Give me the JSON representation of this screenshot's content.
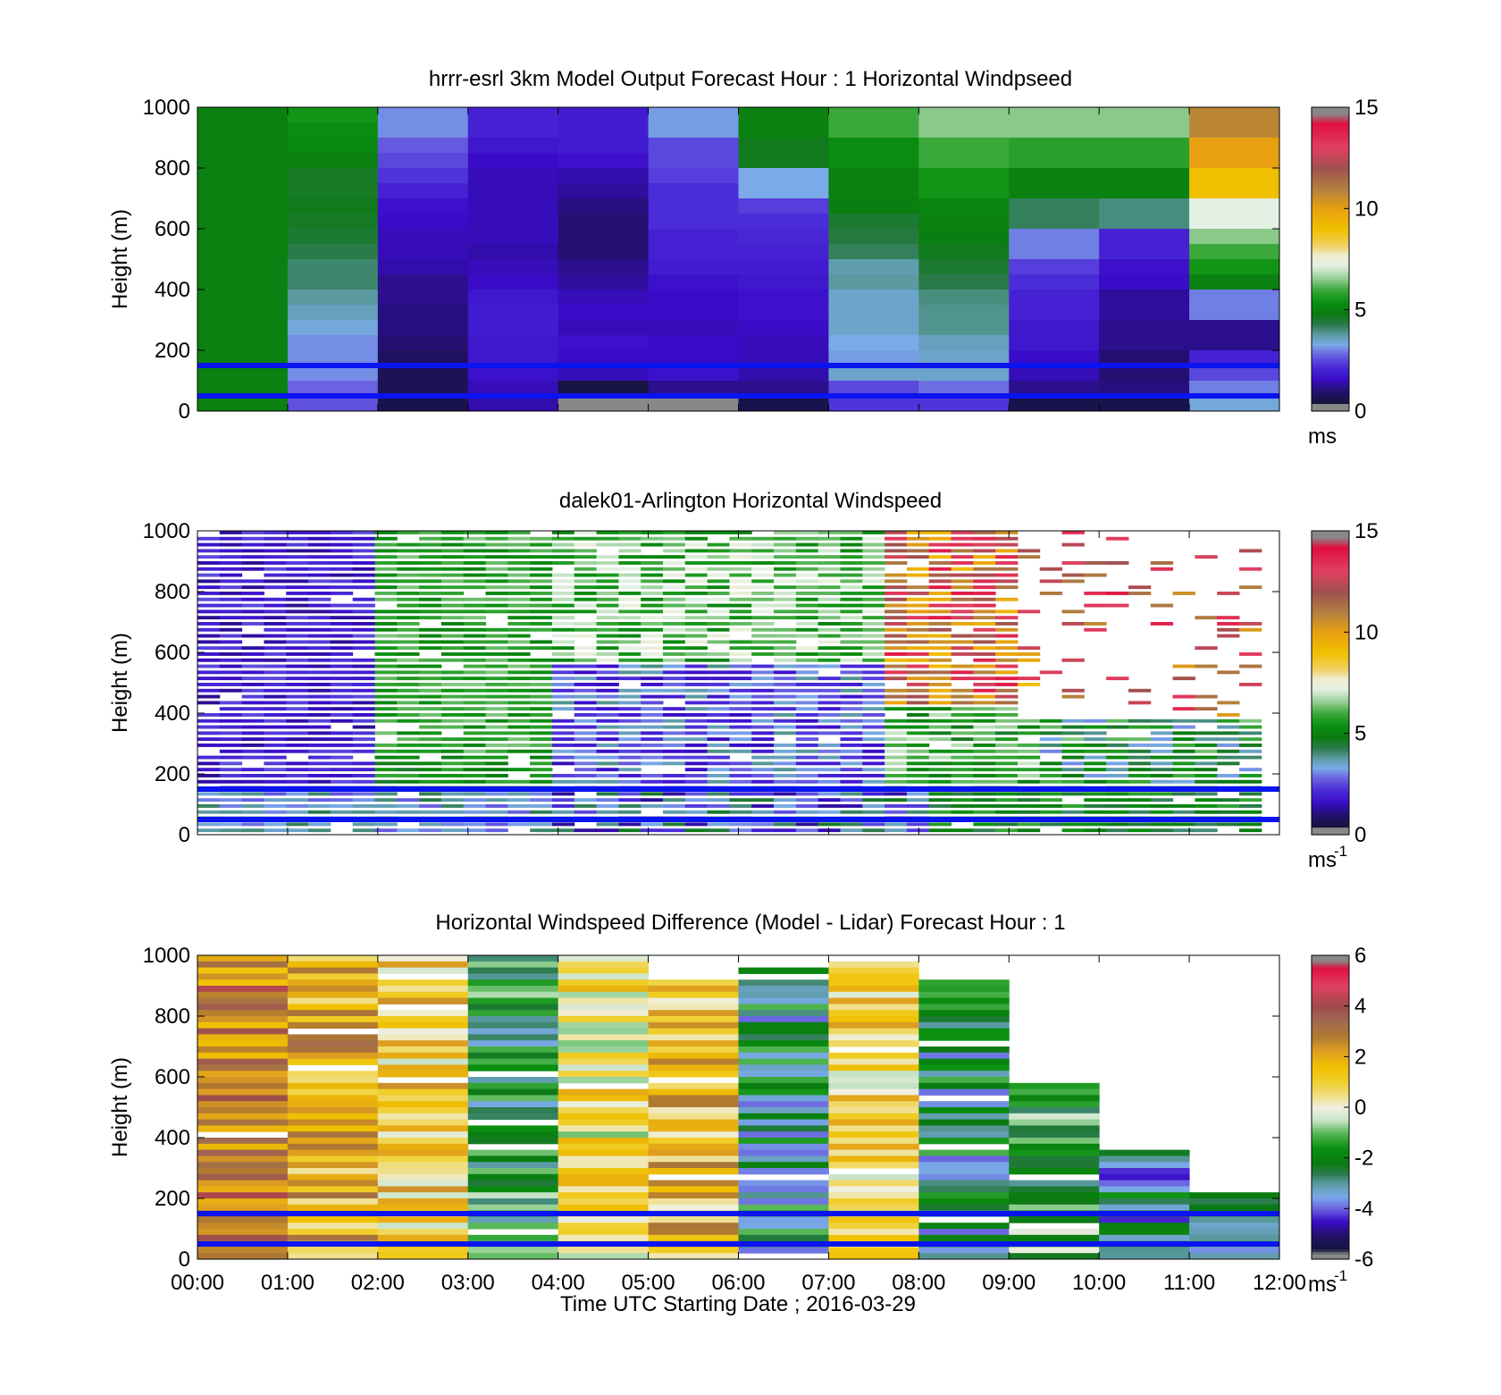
{
  "shared": {
    "xlabel": "Time UTC  Starting Date ; 2016-03-29",
    "xticks": [
      "00:00",
      "01:00",
      "02:00",
      "03:00",
      "04:00",
      "05:00",
      "06:00",
      "07:00",
      "08:00",
      "09:00",
      "10:00",
      "11:00",
      "12:00"
    ],
    "ylabel": "Height (m)",
    "yticks": [
      "0",
      "200",
      "400",
      "600",
      "800",
      "1000"
    ],
    "reference_lines_height_m": [
      150,
      50
    ],
    "reference_line_color": "#0a14f0"
  },
  "chart_data": [
    {
      "type": "heatmap",
      "title": "hrrr-esrl 3km Model Output   Forecast Hour : 1 Horizontal Windpseed",
      "xlim": [
        0,
        12
      ],
      "ylim": [
        0,
        1000
      ],
      "colorbar": {
        "range": [
          0,
          15
        ],
        "ticks": [
          "0",
          "5",
          "10",
          "15"
        ],
        "unit": "ms",
        "unit_sup": ""
      },
      "columns": [
        [
          5.0,
          5.0,
          5.0,
          5.0,
          5.0,
          5.0,
          5.0,
          5.0,
          5.0,
          5.0,
          5.0,
          5.0,
          5.0,
          5.0,
          5.0,
          5.0,
          5.0,
          5.0,
          5.0,
          5.0
        ],
        [
          5.5,
          5.3,
          5.2,
          5.0,
          4.6,
          4.6,
          4.7,
          4.6,
          4.5,
          4.3,
          4.1,
          4.1,
          3.8,
          3.6,
          3.4,
          3.1,
          3.1,
          3.1,
          2.8,
          2.6
        ],
        [
          3.1,
          3.1,
          2.7,
          2.5,
          2.3,
          2.0,
          1.7,
          1.6,
          1.5,
          1.5,
          1.4,
          1.2,
          1.2,
          1.1,
          1.1,
          1.0,
          0.8,
          0.7,
          0.7,
          0.6
        ],
        [
          2.0,
          2.0,
          1.8,
          1.6,
          1.5,
          1.5,
          1.5,
          1.5,
          1.5,
          1.4,
          1.5,
          1.6,
          1.8,
          1.9,
          1.9,
          1.8,
          1.8,
          1.7,
          1.5,
          1.4
        ],
        [
          1.9,
          1.9,
          1.9,
          1.7,
          1.4,
          1.3,
          1.1,
          1.0,
          1.0,
          1.0,
          1.2,
          1.3,
          1.5,
          1.6,
          1.5,
          1.7,
          1.6,
          1.5,
          0.5,
          0.3
        ],
        [
          3.2,
          3.2,
          2.5,
          2.5,
          2.4,
          2.2,
          2.2,
          2.2,
          2.0,
          2.0,
          1.9,
          1.7,
          1.6,
          1.6,
          1.5,
          1.6,
          1.6,
          1.7,
          1.2,
          0.3
        ],
        [
          5.0,
          5.0,
          4.7,
          4.7,
          3.3,
          3.3,
          2.4,
          2.2,
          2.1,
          2.0,
          1.9,
          1.8,
          1.7,
          1.7,
          1.6,
          1.5,
          1.5,
          1.4,
          1.2,
          0.6
        ],
        [
          6.0,
          6.0,
          5.3,
          5.3,
          5.0,
          5.0,
          4.9,
          4.5,
          4.4,
          4.2,
          3.7,
          3.8,
          3.5,
          3.5,
          3.5,
          3.3,
          3.2,
          3.5,
          2.5,
          2.3
        ],
        [
          6.5,
          6.5,
          6.0,
          6.0,
          5.5,
          5.5,
          5.1,
          5.0,
          4.9,
          4.7,
          4.5,
          4.3,
          4.0,
          3.9,
          3.9,
          3.6,
          3.5,
          3.5,
          2.9,
          2.3
        ],
        [
          6.5,
          6.5,
          5.8,
          5.8,
          5.0,
          5.0,
          4.2,
          4.2,
          3.0,
          3.0,
          2.4,
          2.2,
          2.0,
          2.0,
          1.8,
          1.8,
          1.6,
          1.5,
          1.2,
          0.6
        ],
        [
          6.5,
          6.5,
          5.8,
          5.8,
          5.0,
          5.0,
          4.0,
          4.0,
          2.0,
          2.0,
          1.7,
          1.6,
          1.3,
          1.3,
          1.2,
          1.2,
          1.0,
          1.0,
          1.1,
          0.6
        ],
        [
          10.8,
          10.8,
          10.0,
          10.0,
          9.0,
          9.0,
          7.2,
          7.2,
          6.5,
          6.0,
          5.5,
          5.0,
          3.0,
          3.0,
          1.2,
          1.2,
          2.0,
          2.5,
          3.0,
          3.4
        ]
      ]
    },
    {
      "type": "heatmap",
      "title": "dalek01-Arlington  Horizontal Windspeed",
      "xlim": [
        0,
        12
      ],
      "ylim": [
        0,
        1000
      ],
      "colorbar": {
        "range": [
          0,
          15
        ],
        "ticks": [
          "0",
          "5",
          "10",
          "15"
        ],
        "unit": "ms",
        "unit_sup": "-1"
      },
      "x_start_hour": 0,
      "x_end_hour": 11.8,
      "columns_count": 48,
      "rows_count": 50,
      "note_values": "lidar profile: blue/purple (1-2.5) at 00-02h low, green (5-6) 02-07h, orange/red (9-14) 08-10h upper, sparse above 400 m after 09h"
    },
    {
      "type": "heatmap",
      "title": "Horizontal Windspeed Difference (Model - Lidar) Forecast Hour : 1",
      "xlim": [
        0,
        12
      ],
      "ylim": [
        0,
        1000
      ],
      "colorbar": {
        "range": [
          -6,
          6
        ],
        "ticks": [
          "-6",
          "-4",
          "-2",
          "0",
          "2",
          "4",
          "6"
        ],
        "unit": "ms",
        "unit_sup": "-1"
      },
      "columns_top_m": [
        1000,
        1000,
        1000,
        1000,
        1000,
        920,
        960,
        980,
        920,
        580,
        360,
        220
      ]
    }
  ]
}
